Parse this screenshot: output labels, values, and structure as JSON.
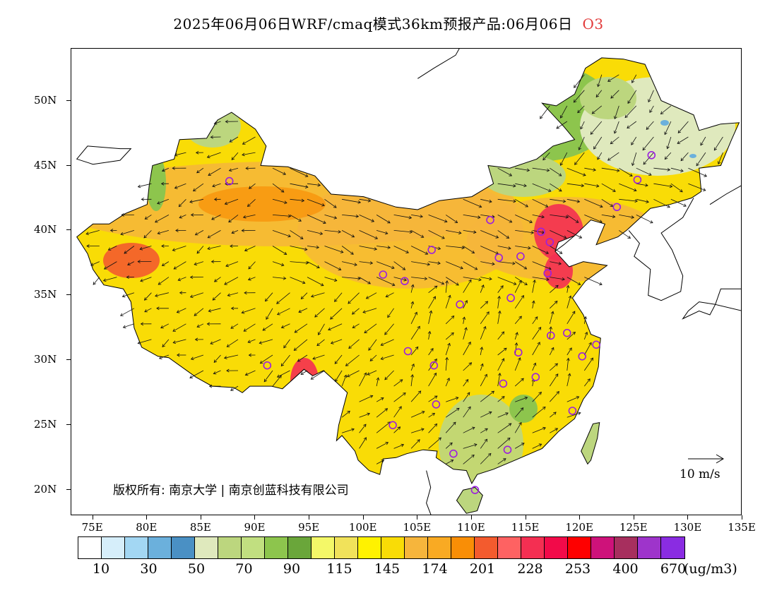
{
  "header": {
    "title": "2025年06月06日WRF/cmaq模式36km预报产品:06月06日",
    "pollutant": "O3"
  },
  "map": {
    "lat_labels": [
      "50N",
      "45N",
      "40N",
      "35N",
      "30N",
      "25N",
      "20N"
    ],
    "lon_labels": [
      "75E",
      "80E",
      "85E",
      "90E",
      "95E",
      "100E",
      "105E",
      "110E",
      "115E",
      "120E",
      "125E",
      "130E",
      "135E"
    ],
    "copyright": "版权所有: 南京大学 | 南京创蓝科技有限公司",
    "wind_reference": "10 m/s"
  },
  "legend": {
    "colors": [
      "#ffffff",
      "#d6eefa",
      "#a3d7f3",
      "#6bb0dc",
      "#4a90c4",
      "#dfe9bd",
      "#bcd67e",
      "#c1df80",
      "#8dc54d",
      "#6aa63a",
      "#f4f868",
      "#f1e25a",
      "#fff200",
      "#f9dc06",
      "#f6b53c",
      "#f9aa23",
      "#f98e06",
      "#f35b2e",
      "#fe6262",
      "#f42f52",
      "#f20a49",
      "#fe0000",
      "#ce127a",
      "#a72f5e",
      "#9e34cb",
      "#8a2ce2"
    ],
    "labels": [
      "10",
      "30",
      "50",
      "70",
      "90",
      "115",
      "145",
      "174",
      "201",
      "228",
      "253",
      "400",
      "670"
    ],
    "unit": "(ug/m3)"
  },
  "stations": [
    {
      "lon": 87.6,
      "lat": 43.8
    },
    {
      "lon": 91.1,
      "lat": 29.6
    },
    {
      "lon": 101.8,
      "lat": 36.6
    },
    {
      "lon": 103.8,
      "lat": 36.1
    },
    {
      "lon": 106.3,
      "lat": 38.5
    },
    {
      "lon": 111.7,
      "lat": 40.8
    },
    {
      "lon": 116.4,
      "lat": 39.9
    },
    {
      "lon": 117.2,
      "lat": 39.1
    },
    {
      "lon": 114.5,
      "lat": 38.0
    },
    {
      "lon": 112.5,
      "lat": 37.9
    },
    {
      "lon": 117.0,
      "lat": 36.7
    },
    {
      "lon": 113.6,
      "lat": 34.8
    },
    {
      "lon": 108.9,
      "lat": 34.3
    },
    {
      "lon": 104.1,
      "lat": 30.7
    },
    {
      "lon": 106.5,
      "lat": 29.6
    },
    {
      "lon": 114.3,
      "lat": 30.6
    },
    {
      "lon": 112.9,
      "lat": 28.2
    },
    {
      "lon": 115.9,
      "lat": 28.7
    },
    {
      "lon": 117.3,
      "lat": 31.9
    },
    {
      "lon": 118.8,
      "lat": 32.1
    },
    {
      "lon": 121.5,
      "lat": 31.2
    },
    {
      "lon": 120.2,
      "lat": 30.3
    },
    {
      "lon": 119.3,
      "lat": 26.1
    },
    {
      "lon": 113.3,
      "lat": 23.1
    },
    {
      "lon": 108.3,
      "lat": 22.8
    },
    {
      "lon": 110.3,
      "lat": 20.0
    },
    {
      "lon": 106.7,
      "lat": 26.6
    },
    {
      "lon": 102.7,
      "lat": 25.0
    },
    {
      "lon": 123.4,
      "lat": 41.8
    },
    {
      "lon": 125.3,
      "lat": 43.9
    },
    {
      "lon": 126.6,
      "lat": 45.8
    }
  ]
}
